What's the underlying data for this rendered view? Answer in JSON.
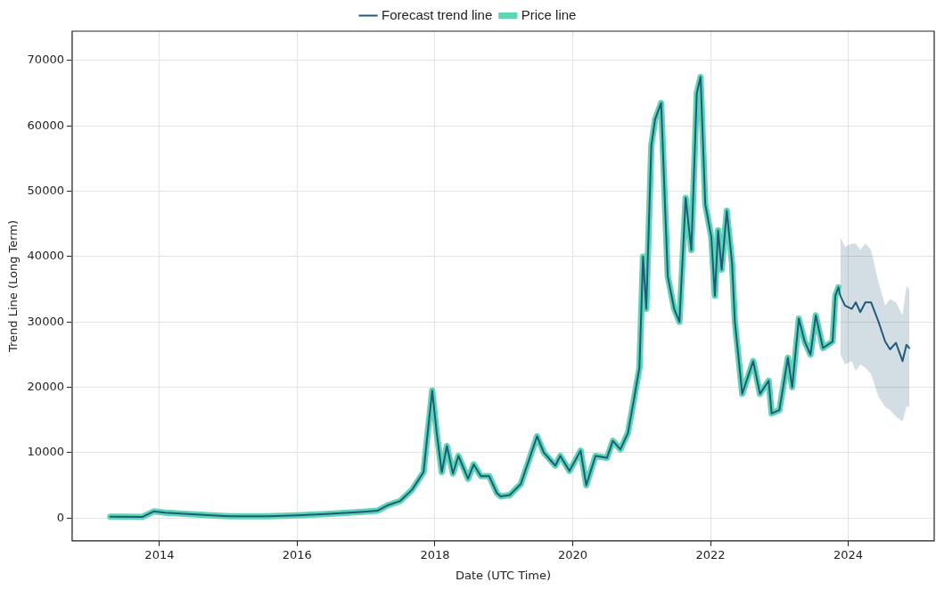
{
  "chart_data": {
    "type": "line",
    "xlabel": "Date (UTC Time)",
    "ylabel": "Trend Line (Long Term)",
    "x": [
      "2013-04-15",
      "2013-10-01",
      "2013-12-01",
      "2014-02-01",
      "2014-06-01",
      "2015-01-15",
      "2015-08-01",
      "2016-01-01",
      "2016-06-01",
      "2016-12-01",
      "2017-03-01",
      "2017-05-01",
      "2017-07-01",
      "2017-09-01",
      "2017-11-01",
      "2017-12-17",
      "2018-01-10",
      "2018-02-06",
      "2018-03-05",
      "2018-04-06",
      "2018-05-05",
      "2018-06-25",
      "2018-07-25",
      "2018-09-01",
      "2018-10-15",
      "2018-11-25",
      "2018-12-15",
      "2019-02-01",
      "2019-04-01",
      "2019-06-26",
      "2019-08-01",
      "2019-10-01",
      "2019-10-27",
      "2019-12-15",
      "2020-02-12",
      "2020-03-13",
      "2020-05-01",
      "2020-07-01",
      "2020-08-01",
      "2020-09-10",
      "2020-10-20",
      "2020-11-20",
      "2020-12-20",
      "2021-01-08",
      "2021-01-25",
      "2021-02-21",
      "2021-03-13",
      "2021-04-14",
      "2021-05-19",
      "2021-06-22",
      "2021-07-20",
      "2021-08-22",
      "2021-09-21",
      "2021-10-20",
      "2021-11-09",
      "2021-12-04",
      "2022-01-05",
      "2022-01-24",
      "2022-02-10",
      "2022-03-01",
      "2022-03-28",
      "2022-04-25",
      "2022-05-10",
      "2022-06-18",
      "2022-08-15",
      "2022-09-20",
      "2022-11-05",
      "2022-11-21",
      "2023-01-01",
      "2023-02-15",
      "2023-03-10",
      "2023-04-14",
      "2023-05-15",
      "2023-06-15",
      "2023-07-13",
      "2023-08-20",
      "2023-10-10",
      "2023-10-25",
      "2023-11-10",
      "2023-11-20",
      "2023-12-15",
      "2024-01-20",
      "2024-02-10",
      "2024-03-05",
      "2024-04-01",
      "2024-05-01",
      "2024-06-10",
      "2024-07-15",
      "2024-08-10",
      "2024-09-10",
      "2024-10-15",
      "2024-11-05",
      "2024-11-20"
    ],
    "series": [
      {
        "name": "Price line",
        "color": "#5dd6b5",
        "values": [
          200,
          150,
          1000,
          800,
          600,
          250,
          250,
          400,
          600,
          900,
          1100,
          2000,
          2600,
          4300,
          7000,
          19500,
          13000,
          7000,
          11000,
          6800,
          9500,
          6000,
          8200,
          6400,
          6400,
          3800,
          3300,
          3500,
          5200,
          12500,
          10000,
          8000,
          9500,
          7200,
          10300,
          5000,
          9500,
          9200,
          11800,
          10500,
          13000,
          18000,
          23000,
          40000,
          32000,
          57000,
          61000,
          63500,
          37000,
          32000,
          30000,
          49000,
          41000,
          65000,
          67500,
          48000,
          43000,
          34000,
          44000,
          38000,
          47000,
          39000,
          30000,
          19000,
          24000,
          19000,
          21000,
          16000,
          16500,
          24500,
          20000,
          30500,
          27000,
          25000,
          31000,
          26000,
          27000,
          34000,
          35300,
          null,
          null,
          null,
          null,
          null,
          null,
          null,
          null,
          null,
          null,
          null,
          null,
          null,
          null
        ]
      },
      {
        "name": "Forecast trend line",
        "color": "#1f5a7a",
        "values": [
          200,
          150,
          1000,
          800,
          600,
          250,
          250,
          400,
          600,
          900,
          1100,
          2000,
          2600,
          4300,
          7000,
          19500,
          13000,
          7000,
          11000,
          6800,
          9500,
          6000,
          8200,
          6400,
          6400,
          3800,
          3300,
          3500,
          5200,
          12500,
          10000,
          8000,
          9500,
          7200,
          10300,
          5000,
          9500,
          9200,
          11800,
          10500,
          13000,
          18000,
          23000,
          40000,
          32000,
          57000,
          61000,
          63500,
          37000,
          32000,
          30000,
          49000,
          41000,
          65000,
          67500,
          48000,
          43000,
          34000,
          44000,
          38000,
          47000,
          39000,
          30000,
          19000,
          24000,
          19000,
          21000,
          16000,
          16500,
          24500,
          20000,
          30500,
          27000,
          25000,
          31000,
          26000,
          27000,
          34000,
          35300,
          34000,
          32500,
          32000,
          33000,
          31500,
          33000,
          33000,
          30000,
          27000,
          25800,
          26800,
          24000,
          26500,
          26000
        ],
        "lower": [
          null,
          null,
          null,
          null,
          null,
          null,
          null,
          null,
          null,
          null,
          null,
          null,
          null,
          null,
          null,
          null,
          null,
          null,
          null,
          null,
          null,
          null,
          null,
          null,
          null,
          null,
          null,
          null,
          null,
          null,
          null,
          null,
          null,
          null,
          null,
          null,
          null,
          null,
          null,
          null,
          null,
          null,
          null,
          null,
          null,
          null,
          null,
          null,
          null,
          null,
          null,
          null,
          null,
          null,
          null,
          null,
          null,
          null,
          null,
          null,
          null,
          null,
          null,
          null,
          null,
          null,
          null,
          null,
          null,
          null,
          null,
          null,
          null,
          null,
          null,
          null,
          null,
          null,
          null,
          25000,
          23500,
          24000,
          22500,
          23500,
          23000,
          22000,
          18500,
          17000,
          16500,
          15500,
          14800,
          17000,
          17000
        ],
        "upper": [
          null,
          null,
          null,
          null,
          null,
          null,
          null,
          null,
          null,
          null,
          null,
          null,
          null,
          null,
          null,
          null,
          null,
          null,
          null,
          null,
          null,
          null,
          null,
          null,
          null,
          null,
          null,
          null,
          null,
          null,
          null,
          null,
          null,
          null,
          null,
          null,
          null,
          null,
          null,
          null,
          null,
          null,
          null,
          null,
          null,
          null,
          null,
          null,
          null,
          null,
          null,
          null,
          null,
          null,
          null,
          null,
          null,
          null,
          null,
          null,
          null,
          null,
          null,
          null,
          null,
          null,
          null,
          null,
          null,
          null,
          null,
          null,
          null,
          null,
          null,
          null,
          null,
          null,
          null,
          43000,
          41500,
          42000,
          42000,
          41000,
          42000,
          41000,
          36000,
          32500,
          33500,
          33000,
          31000,
          35500,
          35000
        ]
      }
    ],
    "xlim": [
      "2012-09-25",
      "2025-04-01"
    ],
    "xticks": [
      {
        "value": "2014-01-01",
        "label": "2014"
      },
      {
        "value": "2016-01-01",
        "label": "2016"
      },
      {
        "value": "2018-01-01",
        "label": "2018"
      },
      {
        "value": "2020-01-01",
        "label": "2020"
      },
      {
        "value": "2022-01-01",
        "label": "2022"
      },
      {
        "value": "2024-01-01",
        "label": "2024"
      }
    ],
    "ylim": [
      -3500,
      74500
    ],
    "yticks": [
      0,
      10000,
      20000,
      30000,
      40000,
      50000,
      60000,
      70000
    ],
    "grid": true,
    "legend": "top",
    "marker": "none",
    "line_style": "solid"
  }
}
